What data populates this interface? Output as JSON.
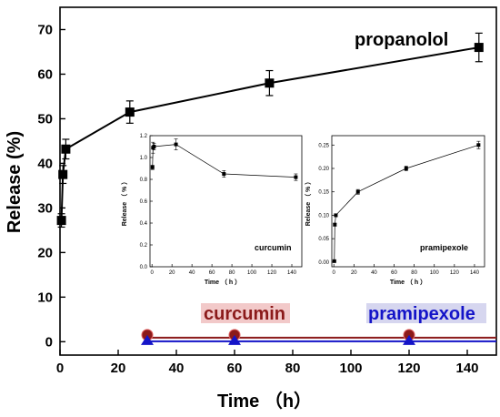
{
  "chart_data": [
    {
      "type": "line",
      "xlabel": "Time （h）",
      "ylabel": "Release (%)",
      "xlim": [
        0,
        150
      ],
      "ylim": [
        -3,
        75
      ],
      "xticks": [
        0,
        20,
        40,
        60,
        80,
        100,
        120,
        140
      ],
      "yticks": [
        0,
        10,
        20,
        30,
        40,
        50,
        60,
        70
      ],
      "series": [
        {
          "name": "propanolol",
          "color": "#000000",
          "marker": "square",
          "x": [
            0.5,
            1,
            2,
            24,
            72,
            144
          ],
          "y": [
            27.2,
            37.5,
            43.2,
            51.5,
            58.0,
            66.0
          ],
          "err": [
            1.5,
            2.0,
            2.2,
            2.5,
            2.8,
            3.2
          ]
        },
        {
          "name": "curcumin",
          "color": "#8b1a1a",
          "marker": "circle",
          "x": [
            30,
            60,
            120
          ],
          "y": [
            0.9,
            0.9,
            0.9
          ]
        },
        {
          "name": "pramipexole",
          "color": "#1414c8",
          "marker": "triangle",
          "x": [
            30,
            60,
            120
          ],
          "y": [
            0.1,
            0.1,
            0.1
          ]
        }
      ]
    },
    {
      "type": "line",
      "label": "curcumin",
      "xlabel": "Time （ h ）",
      "ylabel": "Release （ % ）",
      "xlim": [
        -2,
        150
      ],
      "ylim": [
        0,
        1.2
      ],
      "xticks": [
        0,
        20,
        40,
        60,
        80,
        100,
        120,
        140
      ],
      "yticks": [
        0.0,
        0.2,
        0.4,
        0.6,
        0.8,
        1.0,
        1.2
      ],
      "ytick_labels": [
        "0.0",
        "0.2",
        "0.4",
        "0.6",
        "0.8",
        "1.0",
        "1.2"
      ],
      "series": [
        {
          "x": [
            0.5,
            1,
            2,
            24,
            72,
            144
          ],
          "y": [
            0.91,
            1.09,
            1.1,
            1.12,
            0.85,
            0.82
          ],
          "err": [
            0.02,
            0.05,
            0.03,
            0.05,
            0.03,
            0.03
          ]
        }
      ]
    },
    {
      "type": "line",
      "label": "pramipexole",
      "xlabel": "Time （ h ）",
      "ylabel": "Release （ % ）",
      "xlim": [
        -2,
        150
      ],
      "ylim": [
        -0.01,
        0.27
      ],
      "xticks": [
        0,
        20,
        40,
        60,
        80,
        100,
        120,
        140
      ],
      "yticks": [
        0.0,
        0.05,
        0.1,
        0.15,
        0.2,
        0.25
      ],
      "ytick_labels": [
        "0.00",
        "0.05",
        "0.10",
        "0.15",
        "0.20",
        "0.25"
      ],
      "series": [
        {
          "x": [
            0.5,
            1,
            2,
            24,
            72,
            144
          ],
          "y": [
            0.002,
            0.08,
            0.1,
            0.15,
            0.2,
            0.25
          ],
          "err": [
            0.002,
            0.003,
            0.003,
            0.005,
            0.005,
            0.008
          ]
        }
      ]
    }
  ]
}
